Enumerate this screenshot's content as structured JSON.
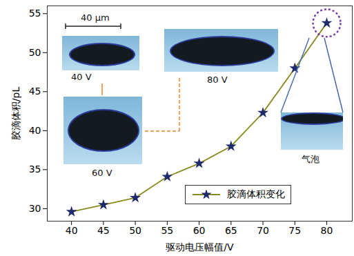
{
  "chart_data": {
    "type": "line",
    "x_label": "驱动电压幅值/V",
    "y_label": "胶滴体积/pL",
    "x": [
      40,
      45,
      50,
      55,
      60,
      65,
      70,
      75,
      80
    ],
    "series": [
      {
        "name": "胶滴体积变化",
        "color": "#8a8a1e",
        "marker": "star",
        "values": [
          29.6,
          30.5,
          31.4,
          34.1,
          35.8,
          38.0,
          42.3,
          48.0,
          53.8
        ]
      }
    ],
    "xlim": [
      36.2,
      84
    ],
    "xticks": [
      40,
      45,
      50,
      55,
      60,
      65,
      70,
      75,
      80
    ],
    "ylim": [
      28.4,
      56
    ],
    "yticks": [
      30,
      35,
      40,
      45,
      50,
      55
    ],
    "legend": "lower right",
    "annotations": [
      "40 μm",
      "40 V",
      "60 V",
      "80 V",
      "气泡"
    ]
  }
}
